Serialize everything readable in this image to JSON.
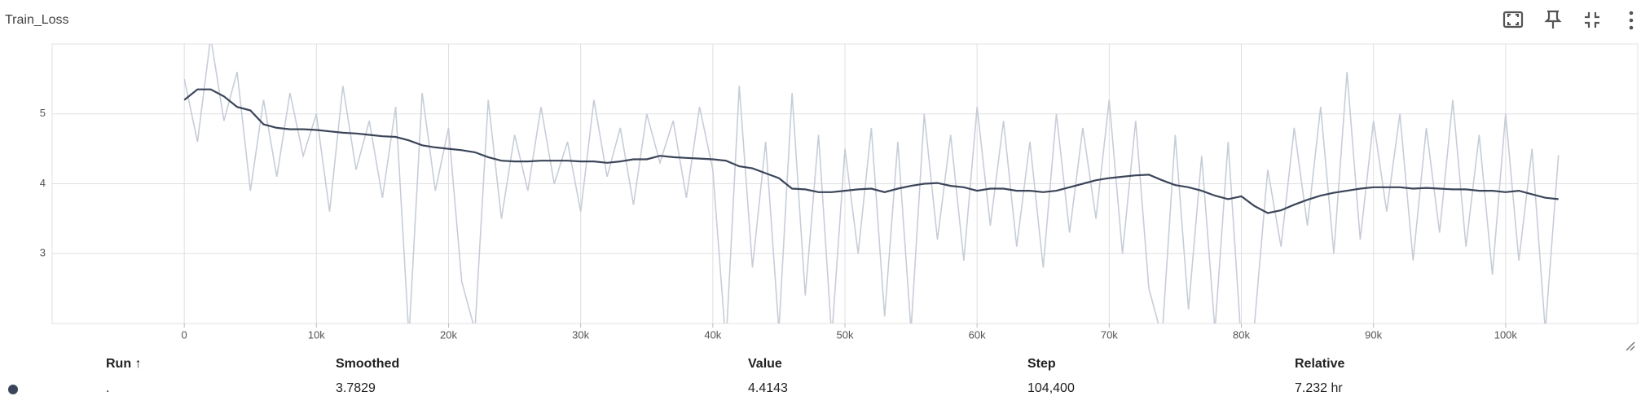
{
  "header": {
    "title": "Train_Loss"
  },
  "chart_data": {
    "type": "line",
    "grid": true,
    "x": [
      0,
      1000,
      2000,
      3000,
      4000,
      5000,
      6000,
      7000,
      8000,
      9000,
      10000,
      11000,
      12000,
      13000,
      14000,
      15000,
      16000,
      17000,
      18000,
      19000,
      20000,
      21000,
      22000,
      23000,
      24000,
      25000,
      26000,
      27000,
      28000,
      29000,
      30000,
      31000,
      32000,
      33000,
      34000,
      35000,
      36000,
      37000,
      38000,
      39000,
      40000,
      41000,
      42000,
      43000,
      44000,
      45000,
      46000,
      47000,
      48000,
      49000,
      50000,
      51000,
      52000,
      53000,
      54000,
      55000,
      56000,
      57000,
      58000,
      59000,
      60000,
      61000,
      62000,
      63000,
      64000,
      65000,
      66000,
      67000,
      68000,
      69000,
      70000,
      71000,
      72000,
      73000,
      74000,
      75000,
      76000,
      77000,
      78000,
      79000,
      80000,
      81000,
      82000,
      83000,
      84000,
      85000,
      86000,
      87000,
      88000,
      89000,
      90000,
      91000,
      92000,
      93000,
      94000,
      95000,
      96000,
      97000,
      98000,
      99000,
      100000,
      101000,
      102000,
      103000,
      104000
    ],
    "series": [
      {
        "color": "#c7cdd8",
        "values": [
          5.5,
          4.6,
          6.1,
          4.9,
          5.6,
          3.9,
          5.2,
          4.1,
          5.3,
          4.4,
          5.0,
          3.6,
          5.4,
          4.2,
          4.9,
          3.8,
          5.1,
          1.8,
          5.3,
          3.9,
          4.8,
          2.6,
          1.9,
          5.2,
          3.5,
          4.7,
          3.9,
          5.1,
          4.0,
          4.6,
          3.6,
          5.2,
          4.1,
          4.8,
          3.7,
          5.0,
          4.3,
          4.9,
          3.8,
          5.1,
          4.2,
          1.7,
          5.4,
          2.8,
          4.6,
          1.9,
          5.3,
          2.4,
          4.7,
          1.8,
          4.5,
          3.0,
          4.8,
          2.1,
          4.6,
          1.9,
          5.0,
          3.2,
          4.7,
          2.9,
          5.1,
          3.4,
          4.9,
          3.1,
          4.6,
          2.8,
          5.0,
          3.3,
          4.8,
          3.5,
          5.2,
          3.0,
          4.9,
          2.5,
          1.8,
          4.7,
          2.2,
          4.4,
          1.9,
          4.6,
          1.7,
          2.0,
          4.2,
          3.1,
          4.8,
          3.4,
          5.1,
          3.0,
          5.6,
          3.2,
          4.9,
          3.6,
          5.0,
          2.9,
          4.8,
          3.3,
          5.2,
          3.1,
          4.7,
          2.7,
          5.0,
          2.9,
          4.5,
          1.9,
          4.41
        ]
      },
      {
        "color": "#3b4559",
        "values": [
          5.2,
          5.35,
          5.35,
          5.25,
          5.1,
          5.05,
          4.85,
          4.8,
          4.78,
          4.78,
          4.77,
          4.75,
          4.73,
          4.72,
          4.7,
          4.68,
          4.67,
          4.62,
          4.55,
          4.52,
          4.5,
          4.48,
          4.45,
          4.38,
          4.33,
          4.32,
          4.32,
          4.33,
          4.33,
          4.33,
          4.32,
          4.32,
          4.3,
          4.32,
          4.35,
          4.35,
          4.4,
          4.38,
          4.37,
          4.36,
          4.35,
          4.33,
          4.25,
          4.22,
          4.15,
          4.08,
          3.93,
          3.92,
          3.88,
          3.88,
          3.9,
          3.92,
          3.93,
          3.88,
          3.93,
          3.97,
          4.0,
          4.01,
          3.97,
          3.95,
          3.9,
          3.93,
          3.93,
          3.9,
          3.9,
          3.88,
          3.9,
          3.95,
          4.0,
          4.05,
          4.08,
          4.1,
          4.12,
          4.13,
          4.05,
          3.98,
          3.95,
          3.9,
          3.83,
          3.78,
          3.82,
          3.68,
          3.58,
          3.62,
          3.7,
          3.77,
          3.83,
          3.87,
          3.9,
          3.93,
          3.95,
          3.95,
          3.95,
          3.93,
          3.94,
          3.93,
          3.92,
          3.92,
          3.9,
          3.9,
          3.88,
          3.9,
          3.85,
          3.8,
          3.78
        ]
      }
    ],
    "xlim": [
      -10000,
      110000
    ],
    "xticks": [
      0,
      {
        "value": 10000,
        "label": "10k"
      },
      {
        "value": 20000,
        "label": "20k"
      },
      {
        "value": 30000,
        "label": "30k"
      },
      {
        "value": 40000,
        "label": "40k"
      },
      {
        "value": 50000,
        "label": "50k"
      },
      {
        "value": 60000,
        "label": "60k"
      },
      {
        "value": 70000,
        "label": "70k"
      },
      {
        "value": 80000,
        "label": "80k"
      },
      {
        "value": 90000,
        "label": "90k"
      },
      {
        "value": 100000,
        "label": "100k"
      }
    ],
    "ylim": [
      2,
      6
    ],
    "yticks": [
      3,
      4,
      5
    ]
  },
  "table": {
    "headers": [
      "Run ↑",
      "Smoothed",
      "Value",
      "Step",
      "Relative"
    ],
    "rows": [
      [
        ".",
        "3.7829",
        "4.4143",
        "104,400",
        "7.232 hr"
      ]
    ]
  }
}
